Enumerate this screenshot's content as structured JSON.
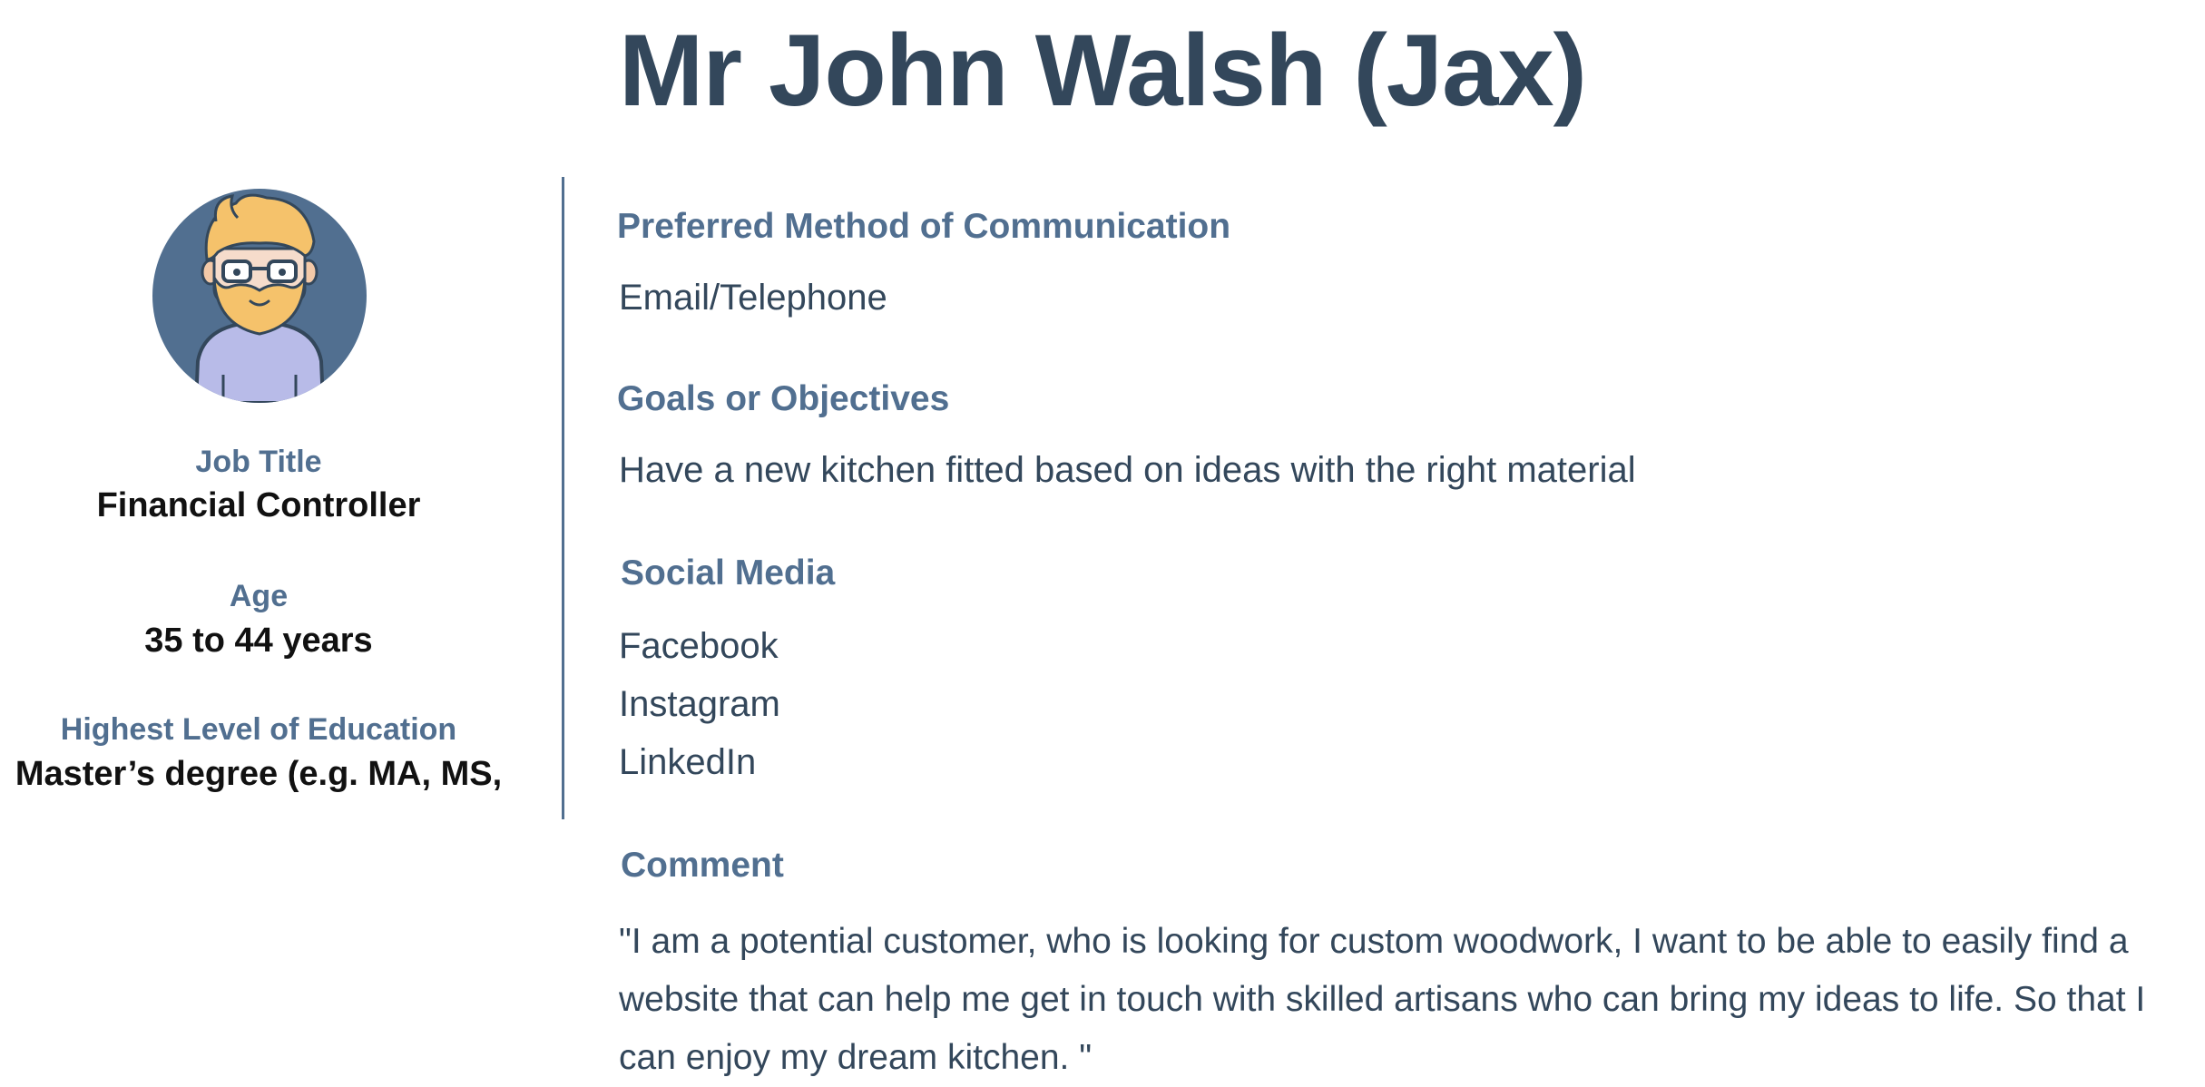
{
  "header": {
    "title": "Mr John Walsh (Jax)"
  },
  "profile": {
    "avatar_icon": "bearded-man-avatar-icon",
    "job_title_label": "Job Title",
    "job_title_value": "Financial Controller",
    "age_label": "Age",
    "age_value": "35 to 44 years",
    "education_label": "Highest Level of Education",
    "education_value": "Master’s degree (e.g. MA, MS,"
  },
  "details": {
    "communication_heading": "Preferred Method of Communication",
    "communication_value": "Email/Telephone",
    "goals_heading": "Goals or Objectives",
    "goals_value": "Have a new kitchen fitted based on ideas with the right material",
    "social_heading": "Social Media",
    "social_items": [
      "Facebook",
      "Instagram",
      "LinkedIn"
    ],
    "comment_heading": "Comment",
    "comment_value": "\"I am a potential customer, who is looking for custom woodwork, I want to be able to easily find a website that can help me get in touch with skilled artisans who can bring my ideas to life. So that I can enjoy my dream kitchen. \""
  },
  "colors": {
    "title": "#33475b",
    "label": "#516f90",
    "avatar_bg": "#516f90",
    "shirt": "#b8bbe8",
    "hair": "#f5c26b"
  }
}
